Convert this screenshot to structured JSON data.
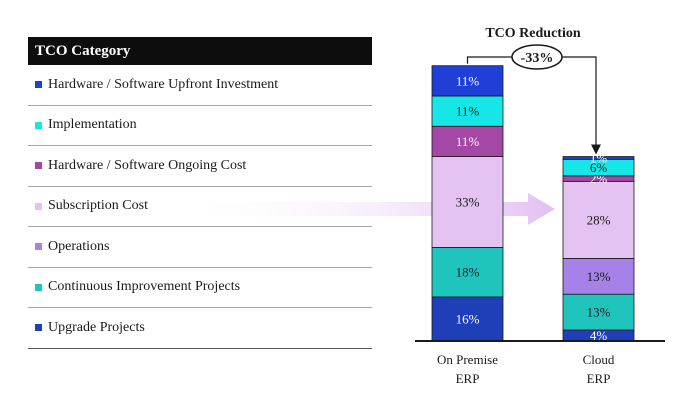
{
  "legend": {
    "header": "TCO Category",
    "items": [
      {
        "label": "Hardware / Software Upfront Investment",
        "color": "#1f3fd6"
      },
      {
        "label": "Implementation",
        "color": "#17e6e6"
      },
      {
        "label": "Hardware / Software Ongoing Cost",
        "color": "#a548a5"
      },
      {
        "label": "Subscription Cost",
        "color": "#e4c2f2"
      },
      {
        "label": "Operations",
        "color": "#a682e8"
      },
      {
        "label": "Continuous Improvement Projects",
        "color": "#1fc4bd"
      },
      {
        "label": "Upgrade Projects",
        "color": "#1f3fb8"
      }
    ]
  },
  "chart_data": {
    "type": "bar",
    "stacked": true,
    "title": "TCO Reduction",
    "reduction_label": "-33%",
    "categories": [
      "On Premise ERP",
      "Cloud ERP"
    ],
    "category_lines": [
      [
        "On Premise",
        "ERP"
      ],
      [
        "Cloud",
        "ERP"
      ]
    ],
    "series": [
      {
        "name": "Upgrade Projects",
        "values": [
          16,
          4
        ],
        "labels": [
          "16%",
          "4%"
        ],
        "color": "#1f3fb8"
      },
      {
        "name": "Continuous Improvement Projects",
        "values": [
          18,
          13
        ],
        "labels": [
          "18%",
          "13%"
        ],
        "color": "#1fc4bd"
      },
      {
        "name": "Operations",
        "values": [
          0,
          13
        ],
        "labels": [
          "",
          "13%"
        ],
        "color": "#a682e8"
      },
      {
        "name": "Subscription Cost",
        "values": [
          33,
          28
        ],
        "labels": [
          "33%",
          "28%"
        ],
        "color": "#e4c2f2"
      },
      {
        "name": "Hardware / Software Ongoing Cost",
        "values": [
          11,
          2
        ],
        "labels": [
          "11%",
          "2%"
        ],
        "color": "#a548a5"
      },
      {
        "name": "Implementation",
        "values": [
          11,
          6
        ],
        "labels": [
          "11%",
          "6%"
        ],
        "color": "#17e6e6"
      },
      {
        "name": "Hardware / Software Upfront Investment",
        "values": [
          11,
          1
        ],
        "labels": [
          "11%",
          "1%"
        ],
        "color": "#1f3fd6"
      }
    ]
  }
}
